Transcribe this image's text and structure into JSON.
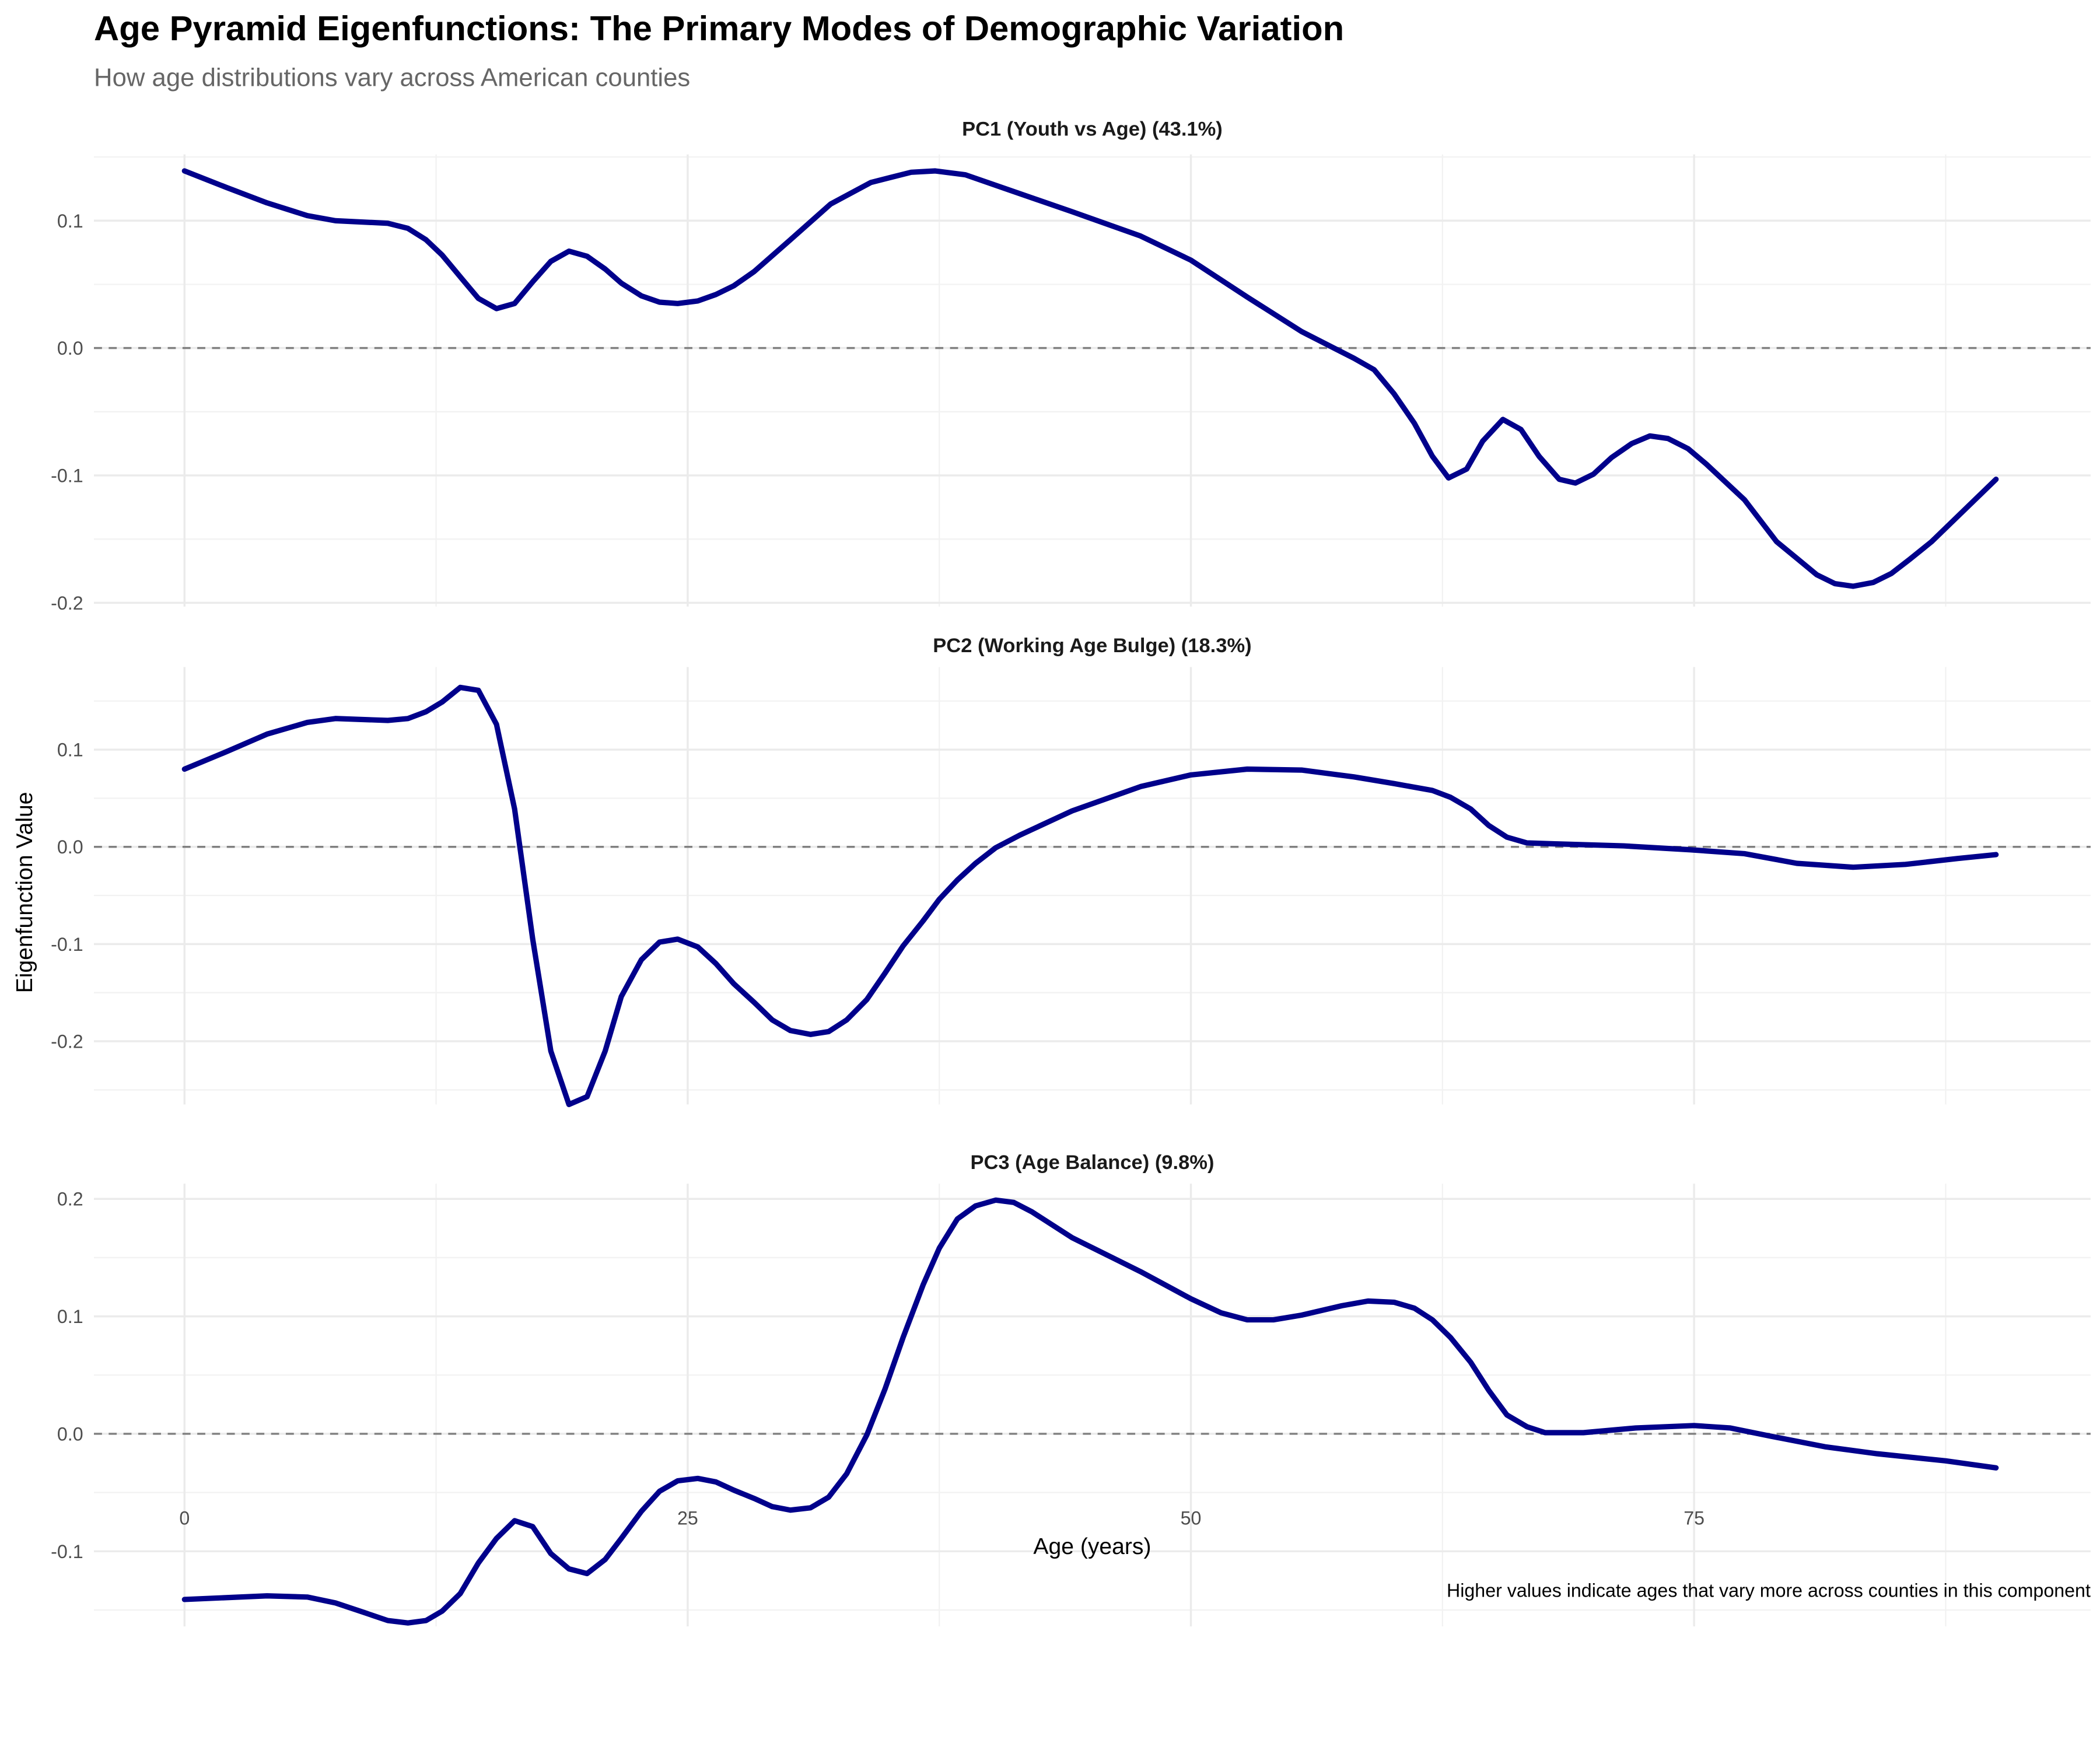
{
  "chart_data": {
    "type": "line",
    "title": "Age Pyramid Eigenfunctions: The Primary Modes of Demographic Variation",
    "subtitle": "How age distributions vary across American counties",
    "xlabel": "Age (years)",
    "ylabel": "Eigenfunction Value",
    "caption": "Higher values indicate ages that vary more across counties in this component",
    "xlim": [
      -4.5,
      94.7
    ],
    "x_ticks": [
      0,
      25,
      50,
      75
    ],
    "x_tick_labels": [
      "0",
      "25",
      "50",
      "75"
    ],
    "line_color": "#00008B",
    "reference_line": {
      "y": 0,
      "style": "dashed",
      "color": "#808080"
    },
    "grid": true,
    "panels": [
      {
        "title": "PC1 (Youth vs Age) (43.1%)",
        "ylim": [
          -0.203,
          0.152
        ],
        "y_ticks": [
          -0.2,
          -0.1,
          0.0,
          0.1
        ],
        "y_tick_labels": [
          "-0.2",
          "-0.1",
          "0.0",
          "0.1"
        ],
        "points": [
          [
            0,
            0.139
          ],
          [
            2.1,
            0.126
          ],
          [
            4.1,
            0.114
          ],
          [
            6.1,
            0.104
          ],
          [
            7.5,
            0.1
          ],
          [
            10.1,
            0.098
          ],
          [
            11.1,
            0.094
          ],
          [
            12,
            0.085
          ],
          [
            12.8,
            0.073
          ],
          [
            13.8,
            0.054
          ],
          [
            14.6,
            0.039
          ],
          [
            15.5,
            0.031
          ],
          [
            16.4,
            0.035
          ],
          [
            17.3,
            0.052
          ],
          [
            18.2,
            0.068
          ],
          [
            19.1,
            0.076
          ],
          [
            20,
            0.072
          ],
          [
            20.9,
            0.062
          ],
          [
            21.7,
            0.051
          ],
          [
            22.7,
            0.041
          ],
          [
            23.6,
            0.036
          ],
          [
            24.5,
            0.035
          ],
          [
            25.5,
            0.037
          ],
          [
            26.4,
            0.042
          ],
          [
            27.3,
            0.049
          ],
          [
            28.3,
            0.06
          ],
          [
            30.1,
            0.085
          ],
          [
            32.1,
            0.113
          ],
          [
            34.1,
            0.13
          ],
          [
            36.1,
            0.138
          ],
          [
            37.3,
            0.139
          ],
          [
            38.8,
            0.136
          ],
          [
            40.8,
            0.125
          ],
          [
            44.1,
            0.107
          ],
          [
            47.5,
            0.088
          ],
          [
            50,
            0.069
          ],
          [
            52.8,
            0.04
          ],
          [
            55.5,
            0.013
          ],
          [
            58.1,
            -0.008
          ],
          [
            59.1,
            -0.017
          ],
          [
            60.1,
            -0.036
          ],
          [
            61.1,
            -0.059
          ],
          [
            62,
            -0.085
          ],
          [
            62.8,
            -0.102
          ],
          [
            63.7,
            -0.095
          ],
          [
            64.5,
            -0.073
          ],
          [
            65.5,
            -0.056
          ],
          [
            66.4,
            -0.064
          ],
          [
            67.3,
            -0.085
          ],
          [
            68.3,
            -0.103
          ],
          [
            69.1,
            -0.106
          ],
          [
            70,
            -0.099
          ],
          [
            70.9,
            -0.086
          ],
          [
            71.9,
            -0.075
          ],
          [
            72.8,
            -0.069
          ],
          [
            73.7,
            -0.071
          ],
          [
            74.7,
            -0.079
          ],
          [
            75.6,
            -0.091
          ],
          [
            77.5,
            -0.119
          ],
          [
            79.1,
            -0.152
          ],
          [
            80.1,
            -0.165
          ],
          [
            81.1,
            -0.178
          ],
          [
            82,
            -0.185
          ],
          [
            82.9,
            -0.187
          ],
          [
            83.9,
            -0.184
          ],
          [
            84.8,
            -0.177
          ],
          [
            85.7,
            -0.166
          ],
          [
            86.8,
            -0.152
          ],
          [
            90,
            -0.103
          ]
        ]
      },
      {
        "title": "PC2 (Working Age Bulge) (18.3%)",
        "ylim": [
          -0.265,
          0.185
        ],
        "y_ticks": [
          -0.2,
          -0.1,
          0.0,
          0.1
        ],
        "y_tick_labels": [
          "-0.2",
          "-0.1",
          "0.0",
          "0.1"
        ],
        "points": [
          [
            0,
            0.08
          ],
          [
            2.1,
            0.098
          ],
          [
            4.1,
            0.116
          ],
          [
            6.1,
            0.128
          ],
          [
            7.5,
            0.132
          ],
          [
            10.1,
            0.13
          ],
          [
            11.1,
            0.132
          ],
          [
            12,
            0.139
          ],
          [
            12.8,
            0.149
          ],
          [
            13.7,
            0.164
          ],
          [
            14.6,
            0.161
          ],
          [
            15.5,
            0.126
          ],
          [
            16.4,
            0.039
          ],
          [
            17.3,
            -0.095
          ],
          [
            18.2,
            -0.21
          ],
          [
            19.1,
            -0.265
          ],
          [
            20,
            -0.257
          ],
          [
            20.9,
            -0.21
          ],
          [
            21.7,
            -0.154
          ],
          [
            22.7,
            -0.116
          ],
          [
            23.6,
            -0.098
          ],
          [
            24.5,
            -0.095
          ],
          [
            25.5,
            -0.103
          ],
          [
            26.4,
            -0.12
          ],
          [
            27.3,
            -0.141
          ],
          [
            28.3,
            -0.16
          ],
          [
            29.2,
            -0.178
          ],
          [
            30.1,
            -0.189
          ],
          [
            31.1,
            -0.193
          ],
          [
            32,
            -0.19
          ],
          [
            32.9,
            -0.178
          ],
          [
            33.9,
            -0.157
          ],
          [
            34.8,
            -0.13
          ],
          [
            35.7,
            -0.102
          ],
          [
            36.7,
            -0.076
          ],
          [
            37.5,
            -0.054
          ],
          [
            38.4,
            -0.034
          ],
          [
            39.3,
            -0.017
          ],
          [
            40.3,
            -0.001
          ],
          [
            41.5,
            0.012
          ],
          [
            44.1,
            0.037
          ],
          [
            47.5,
            0.062
          ],
          [
            50,
            0.074
          ],
          [
            52.8,
            0.08
          ],
          [
            55.5,
            0.079
          ],
          [
            58.1,
            0.072
          ],
          [
            60.1,
            0.065
          ],
          [
            62,
            0.058
          ],
          [
            62.9,
            0.051
          ],
          [
            63.9,
            0.039
          ],
          [
            64.8,
            0.022
          ],
          [
            65.7,
            0.01
          ],
          [
            66.7,
            0.004
          ],
          [
            68.1,
            0.003
          ],
          [
            71.5,
            0.001
          ],
          [
            74.8,
            -0.003
          ],
          [
            77.5,
            -0.007
          ],
          [
            80.1,
            -0.017
          ],
          [
            82.9,
            -0.021
          ],
          [
            85.5,
            -0.018
          ],
          [
            88.1,
            -0.012
          ],
          [
            90,
            -0.008
          ]
        ]
      },
      {
        "title": "PC3 (Age Balance) (9.8%)",
        "ylim": [
          -0.164,
          0.213
        ],
        "y_ticks": [
          -0.1,
          0.0,
          0.1,
          0.2
        ],
        "y_tick_labels": [
          "-0.1",
          "0.0",
          "0.1",
          "0.2"
        ],
        "points": [
          [
            0,
            -0.141
          ],
          [
            4.1,
            -0.138
          ],
          [
            6.1,
            -0.139
          ],
          [
            7.5,
            -0.144
          ],
          [
            8.9,
            -0.152
          ],
          [
            10.1,
            -0.159
          ],
          [
            11.1,
            -0.161
          ],
          [
            12,
            -0.159
          ],
          [
            12.8,
            -0.151
          ],
          [
            13.7,
            -0.136
          ],
          [
            14.6,
            -0.11
          ],
          [
            15.5,
            -0.089
          ],
          [
            16.4,
            -0.074
          ],
          [
            17.3,
            -0.079
          ],
          [
            18.2,
            -0.102
          ],
          [
            19.1,
            -0.115
          ],
          [
            20,
            -0.119
          ],
          [
            20.9,
            -0.107
          ],
          [
            21.7,
            -0.089
          ],
          [
            22.7,
            -0.066
          ],
          [
            23.6,
            -0.049
          ],
          [
            24.5,
            -0.04
          ],
          [
            25.5,
            -0.038
          ],
          [
            26.4,
            -0.041
          ],
          [
            27.3,
            -0.048
          ],
          [
            28.3,
            -0.055
          ],
          [
            29.2,
            -0.062
          ],
          [
            30.1,
            -0.065
          ],
          [
            31.1,
            -0.063
          ],
          [
            32,
            -0.054
          ],
          [
            32.9,
            -0.034
          ],
          [
            33.9,
            -0.001
          ],
          [
            34.8,
            0.038
          ],
          [
            35.7,
            0.082
          ],
          [
            36.7,
            0.127
          ],
          [
            37.5,
            0.158
          ],
          [
            38.4,
            0.183
          ],
          [
            39.3,
            0.194
          ],
          [
            40.3,
            0.199
          ],
          [
            41.2,
            0.197
          ],
          [
            42.1,
            0.189
          ],
          [
            44.1,
            0.167
          ],
          [
            47.5,
            0.138
          ],
          [
            50,
            0.115
          ],
          [
            51.5,
            0.103
          ],
          [
            52.8,
            0.097
          ],
          [
            54.1,
            0.097
          ],
          [
            55.5,
            0.101
          ],
          [
            57.5,
            0.109
          ],
          [
            58.8,
            0.113
          ],
          [
            60.1,
            0.112
          ],
          [
            61.1,
            0.107
          ],
          [
            62,
            0.097
          ],
          [
            62.9,
            0.082
          ],
          [
            63.9,
            0.061
          ],
          [
            64.8,
            0.037
          ],
          [
            65.7,
            0.016
          ],
          [
            66.7,
            0.006
          ],
          [
            67.6,
            0.001
          ],
          [
            69.5,
            0.001
          ],
          [
            72.1,
            0.005
          ],
          [
            75,
            0.007
          ],
          [
            76.8,
            0.005
          ],
          [
            78.8,
            -0.002
          ],
          [
            81.5,
            -0.011
          ],
          [
            84.1,
            -0.017
          ],
          [
            87.5,
            -0.023
          ],
          [
            90,
            -0.029
          ]
        ]
      }
    ]
  }
}
